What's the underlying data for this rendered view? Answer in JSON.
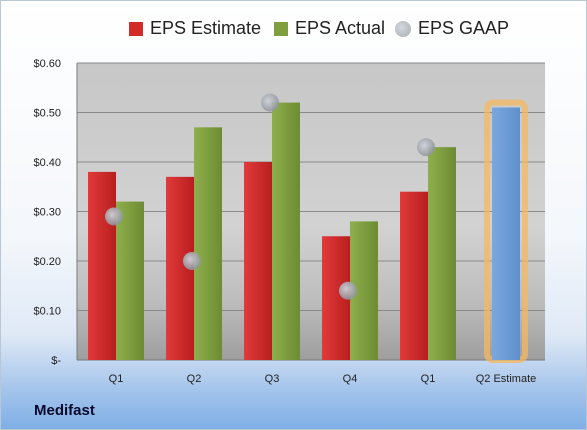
{
  "brand": "Medifast",
  "chart_data": {
    "type": "bar",
    "categories": [
      "Q1",
      "Q2",
      "Q3",
      "Q4",
      "Q1",
      "Q2 Estimate"
    ],
    "series": [
      {
        "name": "EPS Estimate",
        "color": "#d32a2a",
        "values": [
          0.38,
          0.37,
          0.4,
          0.25,
          0.34,
          null
        ]
      },
      {
        "name": "EPS Actual",
        "color": "#7f9f3e",
        "values": [
          0.32,
          0.47,
          0.52,
          0.28,
          0.43,
          0.51
        ]
      },
      {
        "name": "EPS GAAP",
        "color": "#a8adb4",
        "type": "scatter",
        "values": [
          0.29,
          0.2,
          0.52,
          0.14,
          0.43,
          null
        ]
      }
    ],
    "highlight": {
      "category": "Q2 Estimate",
      "color": "#6fa0d8",
      "glow": "#f4b860"
    },
    "y_ticks": [
      "$-",
      "$0.10",
      "$0.20",
      "$0.30",
      "$0.40",
      "$0.50",
      "$0.60"
    ],
    "ylim": [
      0,
      0.6
    ],
    "grid": true,
    "legend_position": "top"
  }
}
